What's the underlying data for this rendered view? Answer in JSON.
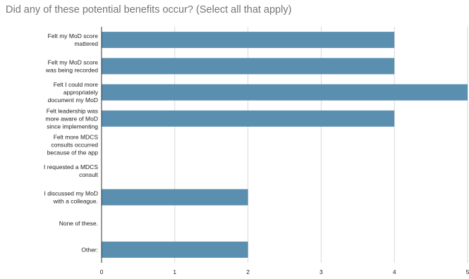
{
  "chart_data": {
    "type": "bar",
    "orientation": "horizontal",
    "title": "Did any of these potential benefits occur? (Select all that apply)",
    "categories": [
      [
        "Felt my MoD score",
        "mattered"
      ],
      [
        "Felt my MoD score",
        "was being recorded"
      ],
      [
        "Felt I could more",
        "appropriately",
        "document my MoD"
      ],
      [
        "Felt leadership was",
        "more aware of MoD",
        "since implementing"
      ],
      [
        "Felt more MDCS",
        "consults occurred",
        "because of the app"
      ],
      [
        "I requested a MDCS",
        "consult"
      ],
      [
        "I discussed my MoD",
        "with a colleague."
      ],
      [
        "None of these."
      ],
      [
        "Other:"
      ]
    ],
    "values": [
      4,
      4,
      5,
      4,
      0,
      0,
      2,
      0,
      2
    ],
    "xlim": [
      0,
      5
    ],
    "xticks": [
      "0",
      "1",
      "2",
      "3",
      "4",
      "5"
    ],
    "grid": true,
    "bar_color": "#5b8fb0",
    "grid_color": "#d9d9d9",
    "axis_color": "#333333"
  }
}
